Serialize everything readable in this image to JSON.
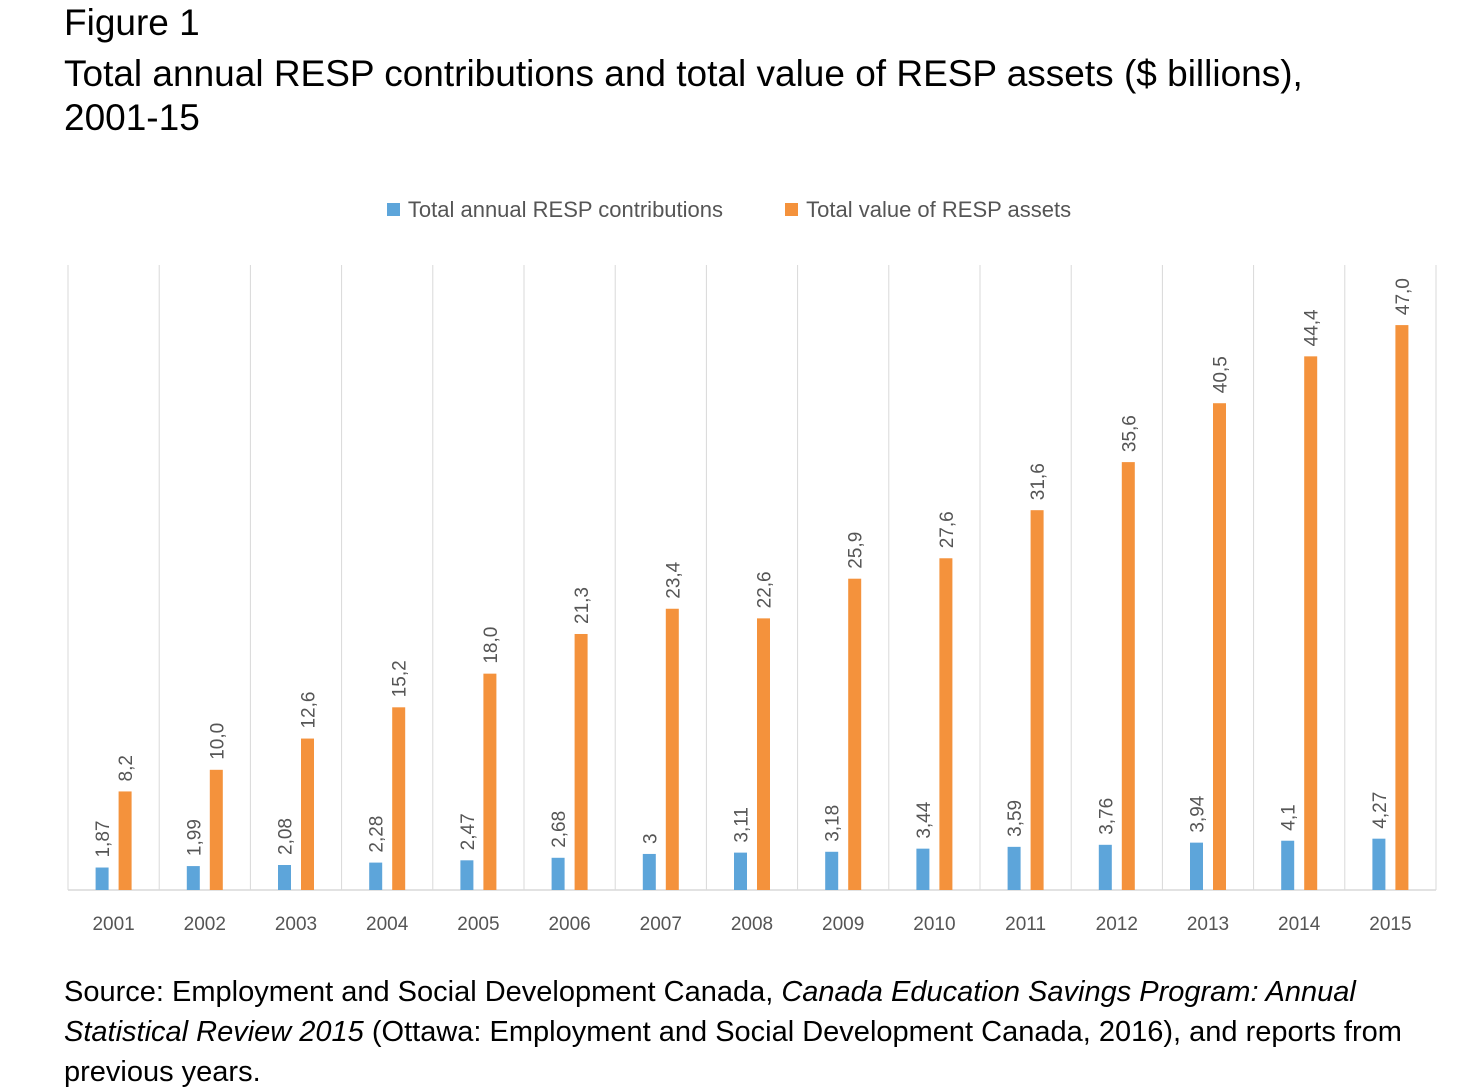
{
  "figure_label": "Figure 1",
  "title": "Total annual RESP contributions and total value of RESP assets ($ billions), 2001-15",
  "source": {
    "prefix": "Source: Employment and Social Development Canada, ",
    "italic": "Canada Education Savings Program: Annual Statistical Review 2015",
    "suffix": " (Ottawa: Employment and Social Development Canada, 2016), and reports from previous years."
  },
  "colors": {
    "contributions": "#5DA5DA",
    "assets": "#F4923C",
    "grid": "#d9d9d9",
    "axis_text": "#555555"
  },
  "chart_data": {
    "type": "bar",
    "categories": [
      "2001",
      "2002",
      "2003",
      "2004",
      "2005",
      "2006",
      "2007",
      "2008",
      "2009",
      "2010",
      "2011",
      "2012",
      "2013",
      "2014",
      "2015"
    ],
    "series": [
      {
        "name": "Total annual RESP contributions",
        "values": [
          1.87,
          1.99,
          2.08,
          2.28,
          2.47,
          2.68,
          3,
          3.11,
          3.18,
          3.44,
          3.59,
          3.76,
          3.94,
          4.1,
          4.27
        ],
        "labels": [
          "1,87",
          "1,99",
          "2,08",
          "2,28",
          "2,47",
          "2,68",
          "3",
          "3,11",
          "3,18",
          "3,44",
          "3,59",
          "3,76",
          "3,94",
          "4,1",
          "4,27"
        ]
      },
      {
        "name": "Total value of RESP assets",
        "values": [
          8.2,
          10.0,
          12.6,
          15.2,
          18.0,
          21.3,
          23.4,
          22.6,
          25.9,
          27.6,
          31.6,
          35.6,
          40.5,
          44.4,
          47.0
        ],
        "labels": [
          "8,2",
          "10,0",
          "12,6",
          "15,2",
          "18,0",
          "21,3",
          "23,4",
          "22,6",
          "25,9",
          "27,6",
          "31,6",
          "35,6",
          "40,5",
          "44,4",
          "47,0"
        ]
      }
    ],
    "ylim": [
      0,
      52
    ],
    "legend": "top",
    "grid": "vertical"
  }
}
